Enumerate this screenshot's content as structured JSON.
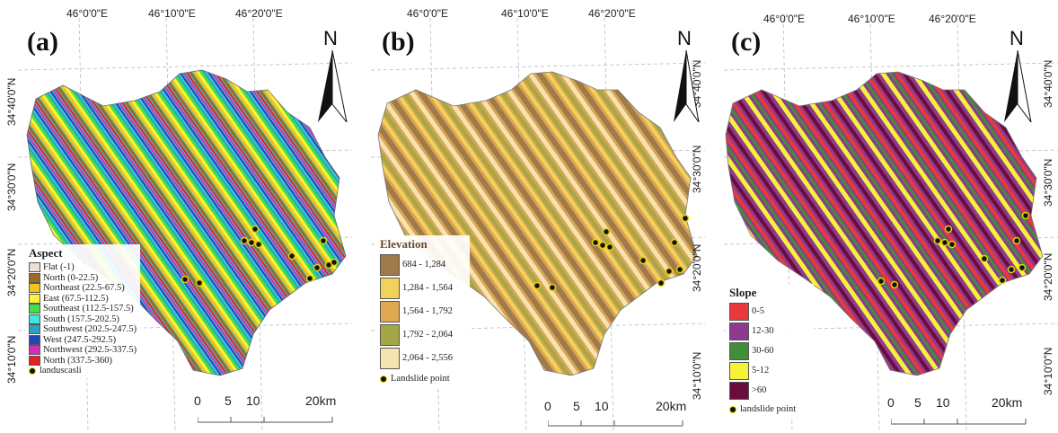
{
  "panels": [
    {
      "tag": "(a)",
      "top_labels": [
        "46°0'0\"E",
        "46°10'0\"E",
        "46°20'0\"E"
      ],
      "side_labels": [
        "34°40'0\"N",
        "34°30'0\"N",
        "34°20'0\"N",
        "34°10'0\"N"
      ],
      "legend_title": "Aspect",
      "legend_items": [
        {
          "label": "Flat (-1)",
          "color": "#e8e0d8"
        },
        {
          "label": "North (0-22.5)",
          "color": "#9b6a2a"
        },
        {
          "label": "Northeast (22.5-67.5)",
          "color": "#f0c419"
        },
        {
          "label": "East (67.5-112.5)",
          "color": "#fff23a"
        },
        {
          "label": "Southeast (112.5-157.5)",
          "color": "#3fe04a"
        },
        {
          "label": "South (157.5-202.5)",
          "color": "#3ee6e0"
        },
        {
          "label": "Southwest (202.5-247.5)",
          "color": "#2aa3c9"
        },
        {
          "label": "West (247.5-292.5)",
          "color": "#2445b8"
        },
        {
          "label": "Northwest (292.5-337.5)",
          "color": "#d32cc0"
        },
        {
          "label": "North (337.5-360)",
          "color": "#e62020"
        }
      ],
      "point_label": "landuscasli",
      "scale_labels": [
        "0",
        "5",
        "10",
        "20km"
      ],
      "north": "N"
    },
    {
      "tag": "(b)",
      "top_labels": [
        "46°0'0\"E",
        "46°10'0\"E",
        "46°20'0\"E"
      ],
      "side_labels": [
        "34°40'0\"N",
        "34°30'0\"N",
        "34°20'0\"N",
        "34°10'0\"N"
      ],
      "legend_title": "Elevation",
      "legend_items": [
        {
          "label": "684 - 1,284",
          "color": "#a07a4a"
        },
        {
          "label": "1,284 - 1,564",
          "color": "#f2d25a"
        },
        {
          "label": "1,564 - 1,792",
          "color": "#e0a850"
        },
        {
          "label": "1,792 - 2,064",
          "color": "#a3a845"
        },
        {
          "label": "2,064 - 2,556",
          "color": "#f5e3b0"
        }
      ],
      "point_label": "Landslide point",
      "scale_labels": [
        "0",
        "5",
        "10",
        "20km"
      ],
      "north": "N"
    },
    {
      "tag": "(c)",
      "top_labels": [
        "46°0'0\"E",
        "46°10'0\"E",
        "46°20'0\"E"
      ],
      "side_labels": [
        "34°40'0\"N",
        "34°30'0\"N",
        "34°20'0\"N",
        "34°10'0\"N"
      ],
      "legend_title": "Slope",
      "legend_items": [
        {
          "label": "0-5",
          "color": "#e8393b"
        },
        {
          "label": "12-30",
          "color": "#8e3a8e"
        },
        {
          "label": "30-60",
          "color": "#3f8f3a"
        },
        {
          "label": "5-12",
          "color": "#f6f23a"
        },
        {
          "label": ">60",
          "color": "#6b0d3c"
        }
      ],
      "point_label": "landslide point",
      "scale_labels": [
        "0",
        "5",
        "10",
        "20km"
      ],
      "north": "N"
    }
  ]
}
